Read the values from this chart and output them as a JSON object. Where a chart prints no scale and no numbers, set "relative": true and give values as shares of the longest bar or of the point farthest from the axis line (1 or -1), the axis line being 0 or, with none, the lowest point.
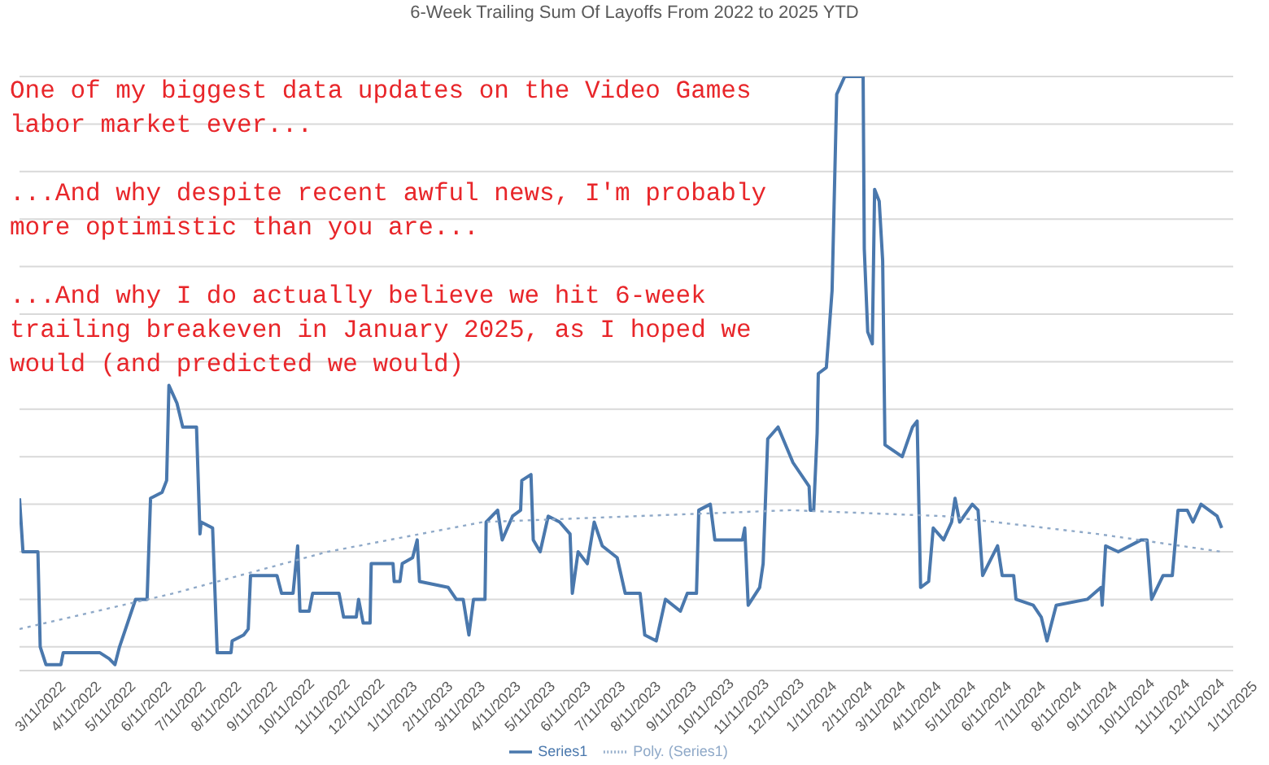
{
  "chart_data": {
    "type": "line",
    "title": "6-Week Trailing Sum Of Layoffs From 2022 to 2025 YTD",
    "relative": true,
    "grid": "y",
    "legend": "bottom",
    "marker": "none",
    "annotations": [
      "One of my biggest data updates on the Video Games labor market ever...",
      "...And why despite recent awful news, I'm probably more optimistic than you are...",
      "...And why I do actually believe we hit 6-week trailing breakeven in January 2025, as I hoped we would (and predicted we would)"
    ],
    "xlim": [
      "2022-02-21",
      "2025-01-12"
    ],
    "xticks": [
      {
        "value": "2022-03-11",
        "label": "3/11/2022"
      },
      {
        "value": "2022-04-11",
        "label": "4/11/2022"
      },
      {
        "value": "2022-05-11",
        "label": "5/11/2022"
      },
      {
        "value": "2022-06-11",
        "label": "6/11/2022"
      },
      {
        "value": "2022-07-11",
        "label": "7/11/2022"
      },
      {
        "value": "2022-08-11",
        "label": "8/11/2022"
      },
      {
        "value": "2022-09-11",
        "label": "9/11/2022"
      },
      {
        "value": "2022-10-11",
        "label": "10/11/2022"
      },
      {
        "value": "2022-11-11",
        "label": "11/11/2022"
      },
      {
        "value": "2022-12-11",
        "label": "12/11/2022"
      },
      {
        "value": "2023-01-11",
        "label": "1/11/2023"
      },
      {
        "value": "2023-02-11",
        "label": "2/11/2023"
      },
      {
        "value": "2023-03-11",
        "label": "3/11/2023"
      },
      {
        "value": "2023-04-11",
        "label": "4/11/2023"
      },
      {
        "value": "2023-05-11",
        "label": "5/11/2023"
      },
      {
        "value": "2023-06-11",
        "label": "6/11/2023"
      },
      {
        "value": "2023-07-11",
        "label": "7/11/2023"
      },
      {
        "value": "2023-08-11",
        "label": "8/11/2023"
      },
      {
        "value": "2023-09-11",
        "label": "9/11/2023"
      },
      {
        "value": "2023-10-11",
        "label": "10/11/2023"
      },
      {
        "value": "2023-11-11",
        "label": "11/11/2023"
      },
      {
        "value": "2023-12-11",
        "label": "12/11/2023"
      },
      {
        "value": "2024-01-11",
        "label": "1/11/2024"
      },
      {
        "value": "2024-02-11",
        "label": "2/11/2024"
      },
      {
        "value": "2024-03-11",
        "label": "3/11/2024"
      },
      {
        "value": "2024-04-11",
        "label": "4/11/2024"
      },
      {
        "value": "2024-05-11",
        "label": "5/11/2024"
      },
      {
        "value": "2024-06-11",
        "label": "6/11/2024"
      },
      {
        "value": "2024-07-11",
        "label": "7/11/2024"
      },
      {
        "value": "2024-08-11",
        "label": "8/11/2024"
      },
      {
        "value": "2024-09-11",
        "label": "9/11/2024"
      },
      {
        "value": "2024-10-11",
        "label": "10/11/2024"
      },
      {
        "value": "2024-11-11",
        "label": "11/11/2024"
      },
      {
        "value": "2024-12-11",
        "label": "12/11/2024"
      },
      {
        "value": "2025-01-11",
        "label": "1/11/2025"
      }
    ],
    "series": [
      {
        "name": "Series1",
        "color": "#4a78ad",
        "line_style": "solid",
        "x": [
          "2022-02-21",
          "2022-02-24",
          "2022-03-09",
          "2022-03-11",
          "2022-03-16",
          "2022-03-29",
          "2022-03-31",
          "2022-05-02",
          "2022-05-10",
          "2022-05-15",
          "2022-05-19",
          "2022-05-26",
          "2022-06-02",
          "2022-06-12",
          "2022-06-15",
          "2022-06-25",
          "2022-06-29",
          "2022-07-01",
          "2022-07-08",
          "2022-07-13",
          "2022-07-25",
          "2022-07-28",
          "2022-07-29",
          "2022-08-08",
          "2022-08-12",
          "2022-08-24",
          "2022-08-25",
          "2022-09-04",
          "2022-09-08",
          "2022-09-10",
          "2022-10-03",
          "2022-10-07",
          "2022-10-17",
          "2022-10-21",
          "2022-10-23",
          "2022-10-31",
          "2022-11-03",
          "2022-11-26",
          "2022-11-30",
          "2022-12-11",
          "2022-12-13",
          "2022-12-17",
          "2022-12-23",
          "2022-12-24",
          "2023-01-12",
          "2023-01-13",
          "2023-01-18",
          "2023-01-20",
          "2023-01-29",
          "2023-02-02",
          "2023-02-04",
          "2023-03-01",
          "2023-03-08",
          "2023-03-14",
          "2023-03-19",
          "2023-03-23",
          "2023-04-02",
          "2023-04-03",
          "2023-04-13",
          "2023-04-17",
          "2023-04-26",
          "2023-05-03",
          "2023-05-04",
          "2023-05-12",
          "2023-05-14",
          "2023-05-20",
          "2023-05-27",
          "2023-06-06",
          "2023-06-15",
          "2023-06-17",
          "2023-06-22",
          "2023-06-30",
          "2023-07-06",
          "2023-07-13",
          "2023-07-26",
          "2023-08-02",
          "2023-08-15",
          "2023-08-19",
          "2023-08-29",
          "2023-09-06",
          "2023-09-19",
          "2023-09-25",
          "2023-10-03",
          "2023-10-05",
          "2023-10-15",
          "2023-10-19",
          "2023-11-01",
          "2023-11-12",
          "2023-11-14",
          "2023-11-17",
          "2023-11-27",
          "2023-11-30",
          "2023-12-04",
          "2023-12-13",
          "2023-12-26",
          "2024-01-09",
          "2024-01-10",
          "2024-01-13",
          "2024-01-16",
          "2024-01-17",
          "2024-01-24",
          "2024-01-29",
          "2024-02-02",
          "2024-02-09",
          "2024-02-25",
          "2024-02-26",
          "2024-02-29",
          "2024-03-04",
          "2024-03-06",
          "2024-03-10",
          "2024-03-13",
          "2024-03-15",
          "2024-03-30",
          "2024-04-08",
          "2024-04-12",
          "2024-04-15",
          "2024-04-22",
          "2024-04-26",
          "2024-05-05",
          "2024-05-12",
          "2024-05-15",
          "2024-05-19",
          "2024-05-30",
          "2024-06-04",
          "2024-06-08",
          "2024-06-21",
          "2024-06-25",
          "2024-07-05",
          "2024-07-07",
          "2024-07-22",
          "2024-07-29",
          "2024-08-03",
          "2024-08-11",
          "2024-09-07",
          "2024-09-19",
          "2024-09-20",
          "2024-09-23",
          "2024-10-04",
          "2024-10-24",
          "2024-10-29",
          "2024-11-02",
          "2024-11-12",
          "2024-11-20",
          "2024-11-25",
          "2024-12-03",
          "2024-12-08",
          "2024-12-15",
          "2024-12-29",
          "2025-01-02"
        ],
        "values": [
          0.29,
          0.2,
          0.2,
          0.04,
          0.01,
          0.01,
          0.03,
          0.03,
          0.02,
          0.01,
          0.04,
          0.08,
          0.12,
          0.12,
          0.29,
          0.3,
          0.32,
          0.48,
          0.45,
          0.41,
          0.41,
          0.23,
          0.25,
          0.24,
          0.03,
          0.03,
          0.05,
          0.06,
          0.07,
          0.16,
          0.16,
          0.13,
          0.13,
          0.21,
          0.1,
          0.1,
          0.13,
          0.13,
          0.09,
          0.09,
          0.12,
          0.08,
          0.08,
          0.18,
          0.18,
          0.15,
          0.15,
          0.18,
          0.19,
          0.22,
          0.15,
          0.14,
          0.12,
          0.12,
          0.06,
          0.12,
          0.12,
          0.25,
          0.27,
          0.22,
          0.26,
          0.27,
          0.32,
          0.33,
          0.22,
          0.2,
          0.26,
          0.25,
          0.23,
          0.13,
          0.2,
          0.18,
          0.25,
          0.21,
          0.19,
          0.13,
          0.13,
          0.06,
          0.05,
          0.12,
          0.1,
          0.13,
          0.13,
          0.27,
          0.28,
          0.22,
          0.22,
          0.22,
          0.24,
          0.11,
          0.14,
          0.18,
          0.39,
          0.41,
          0.35,
          0.31,
          0.27,
          0.27,
          0.4,
          0.5,
          0.51,
          0.64,
          0.97,
          1.0,
          1.0,
          0.71,
          0.57,
          0.55,
          0.81,
          0.79,
          0.69,
          0.38,
          0.36,
          0.41,
          0.42,
          0.14,
          0.15,
          0.24,
          0.22,
          0.25,
          0.29,
          0.25,
          0.28,
          0.27,
          0.16,
          0.21,
          0.16,
          0.16,
          0.12,
          0.11,
          0.09,
          0.05,
          0.11,
          0.12,
          0.14,
          0.11,
          0.21,
          0.2,
          0.22,
          0.22,
          0.12,
          0.16,
          0.16,
          0.27,
          0.27,
          0.25,
          0.28,
          0.26,
          0.24
        ]
      },
      {
        "name": "Poly. (Series1)",
        "color": "#8fa9c8",
        "line_style": "dotted",
        "x": [
          "2022-02-21",
          "2022-07-05",
          "2022-11-16",
          "2023-03-31",
          "2023-08-12",
          "2023-12-24",
          "2024-05-05",
          "2024-09-16",
          "2025-01-02"
        ],
        "values": [
          0.07,
          0.13,
          0.2,
          0.25,
          0.26,
          0.27,
          0.26,
          0.23,
          0.2
        ]
      }
    ]
  }
}
